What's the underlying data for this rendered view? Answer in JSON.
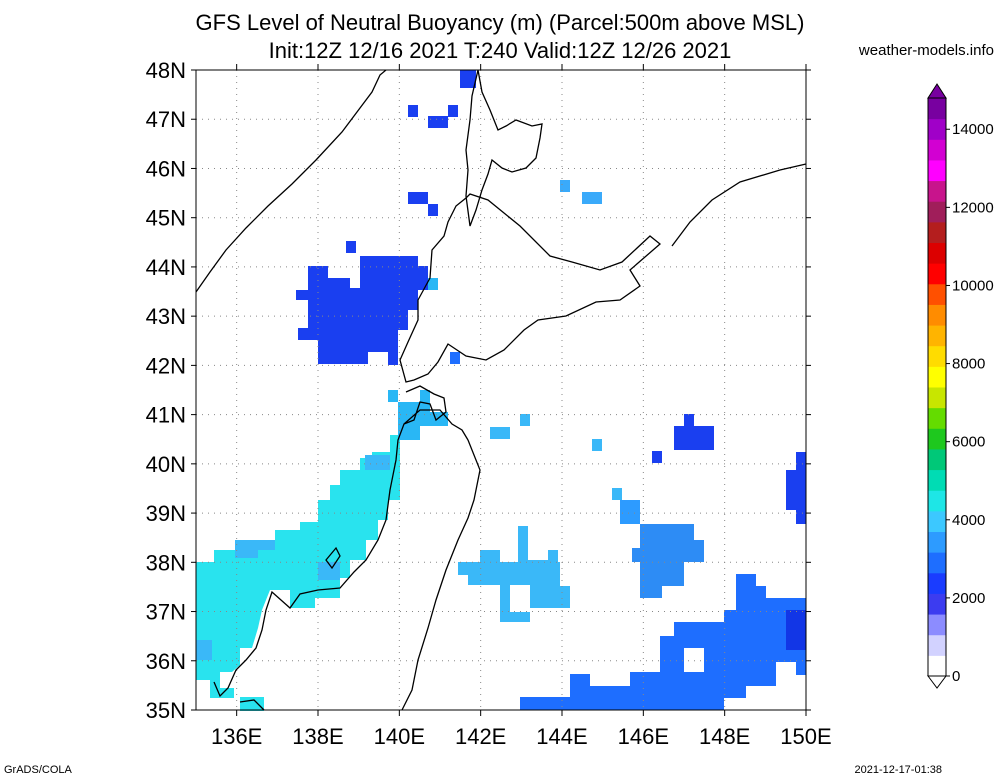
{
  "title_line1": "GFS Level of Neutral Buoyancy (m) (Parcel:500m above MSL)",
  "title_line2": "Init:12Z 12/16 2021 T:240 Valid:12Z 12/26 2021",
  "credit": "weather-models.info",
  "footer_left": "GrADS/COLA",
  "footer_right": "2021-12-17-01:38",
  "map": {
    "lat_range": [
      35,
      48
    ],
    "lon_range": [
      135,
      150
    ],
    "lat_labels": [
      "48N",
      "47N",
      "46N",
      "45N",
      "44N",
      "43N",
      "42N",
      "41N",
      "40N",
      "39N",
      "38N",
      "37N",
      "36N",
      "35N"
    ],
    "lon_labels": [
      "136E",
      "138E",
      "140E",
      "142E",
      "144E",
      "146E",
      "148E",
      "150E"
    ],
    "colorbar_labels": [
      "0",
      "2000",
      "4000",
      "6000",
      "8000",
      "10000",
      "12000",
      "14000"
    ],
    "colorbar_colors": [
      "#ffffff",
      "#d2d2ff",
      "#8c8cff",
      "#3c3cf0",
      "#1a3cff",
      "#1e6eff",
      "#2d9bff",
      "#3cc8ff",
      "#1ee6e6",
      "#00dcb4",
      "#00c878",
      "#1ec81e",
      "#64dc00",
      "#c8e600",
      "#ffff00",
      "#ffdc00",
      "#ffb400",
      "#ff8c00",
      "#ff5000",
      "#ff0000",
      "#dc0000",
      "#b41e1e",
      "#a01e5a",
      "#c8148c",
      "#ff00ff",
      "#d200d2",
      "#a000c8",
      "#7800a0"
    ],
    "field_colors": {
      "cyan": "#29e3ee",
      "lightblue": "#3aaafa",
      "midblue": "#1f78f2",
      "deepblue": "#1a3ff0",
      "royal": "#1236e6"
    }
  }
}
